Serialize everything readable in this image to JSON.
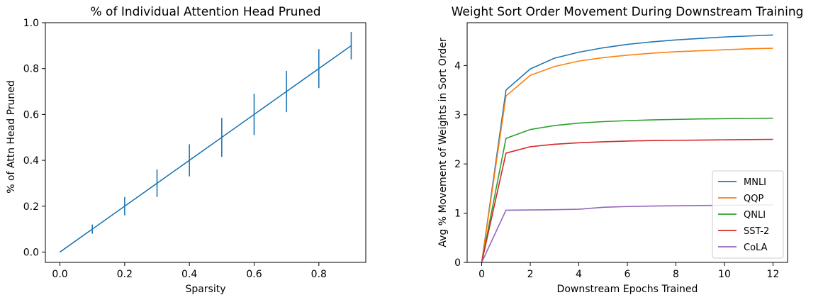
{
  "chart_data": [
    {
      "type": "line",
      "title": "% of Individual Attention Head Pruned",
      "xlabel": "Sparsity",
      "ylabel": "% of Attn Head Pruned",
      "xlim": [
        -0.045,
        0.945
      ],
      "ylim": [
        -0.045,
        1.0
      ],
      "xticks": [
        0.0,
        0.2,
        0.4,
        0.6,
        0.8
      ],
      "xtick_labels": [
        "0.0",
        "0.2",
        "0.4",
        "0.6",
        "0.8"
      ],
      "yticks": [
        0.0,
        0.2,
        0.4,
        0.6,
        0.8,
        1.0
      ],
      "ytick_labels": [
        "0.0",
        "0.2",
        "0.4",
        "0.6",
        "0.8",
        "1.0"
      ],
      "grid": false,
      "color": "#1f77b4",
      "x": [
        0.0,
        0.1,
        0.2,
        0.3,
        0.4,
        0.5,
        0.6,
        0.7,
        0.8,
        0.9
      ],
      "y": [
        0.0,
        0.1,
        0.2,
        0.3,
        0.4,
        0.5,
        0.6,
        0.7,
        0.8,
        0.9
      ],
      "errors": [
        0.0,
        0.02,
        0.04,
        0.06,
        0.07,
        0.085,
        0.09,
        0.09,
        0.085,
        0.06
      ]
    },
    {
      "type": "line",
      "title": "Weight Sort Order Movement During Downstream Training",
      "xlabel": "Downstream Epochs Trained",
      "ylabel": "Avg % Movement of Weights in Sort Order",
      "xlim": [
        -0.6,
        12.6
      ],
      "ylim": [
        0,
        4.87
      ],
      "xticks": [
        0,
        2,
        4,
        6,
        8,
        10,
        12
      ],
      "xtick_labels": [
        "0",
        "2",
        "4",
        "6",
        "8",
        "10",
        "12"
      ],
      "yticks": [
        0,
        1,
        2,
        3,
        4
      ],
      "ytick_labels": [
        "0",
        "1",
        "2",
        "3",
        "4"
      ],
      "grid": false,
      "legend": "lower-right",
      "x": [
        0,
        1,
        2,
        3,
        4,
        5,
        6,
        7,
        8,
        9,
        10,
        11,
        12
      ],
      "series": [
        {
          "name": "MNLI",
          "color": "#1f77b4",
          "values": [
            0,
            3.5,
            3.93,
            4.15,
            4.27,
            4.36,
            4.43,
            4.48,
            4.52,
            4.55,
            4.58,
            4.6,
            4.62
          ]
        },
        {
          "name": "QQP",
          "color": "#ff7f0e",
          "values": [
            0,
            3.38,
            3.8,
            3.98,
            4.09,
            4.16,
            4.21,
            4.25,
            4.28,
            4.3,
            4.32,
            4.34,
            4.35
          ]
        },
        {
          "name": "QNLI",
          "color": "#2ca02c",
          "values": [
            0,
            2.52,
            2.7,
            2.78,
            2.83,
            2.86,
            2.88,
            2.895,
            2.905,
            2.915,
            2.92,
            2.925,
            2.93
          ]
        },
        {
          "name": "SST-2",
          "color": "#d62728",
          "values": [
            0,
            2.22,
            2.35,
            2.4,
            2.43,
            2.45,
            2.465,
            2.475,
            2.48,
            2.485,
            2.49,
            2.495,
            2.5
          ]
        },
        {
          "name": "CoLA",
          "color": "#9467bd",
          "values": [
            0,
            1.06,
            1.065,
            1.07,
            1.08,
            1.12,
            1.135,
            1.145,
            1.15,
            1.155,
            1.16,
            1.165,
            1.17
          ]
        }
      ]
    }
  ]
}
